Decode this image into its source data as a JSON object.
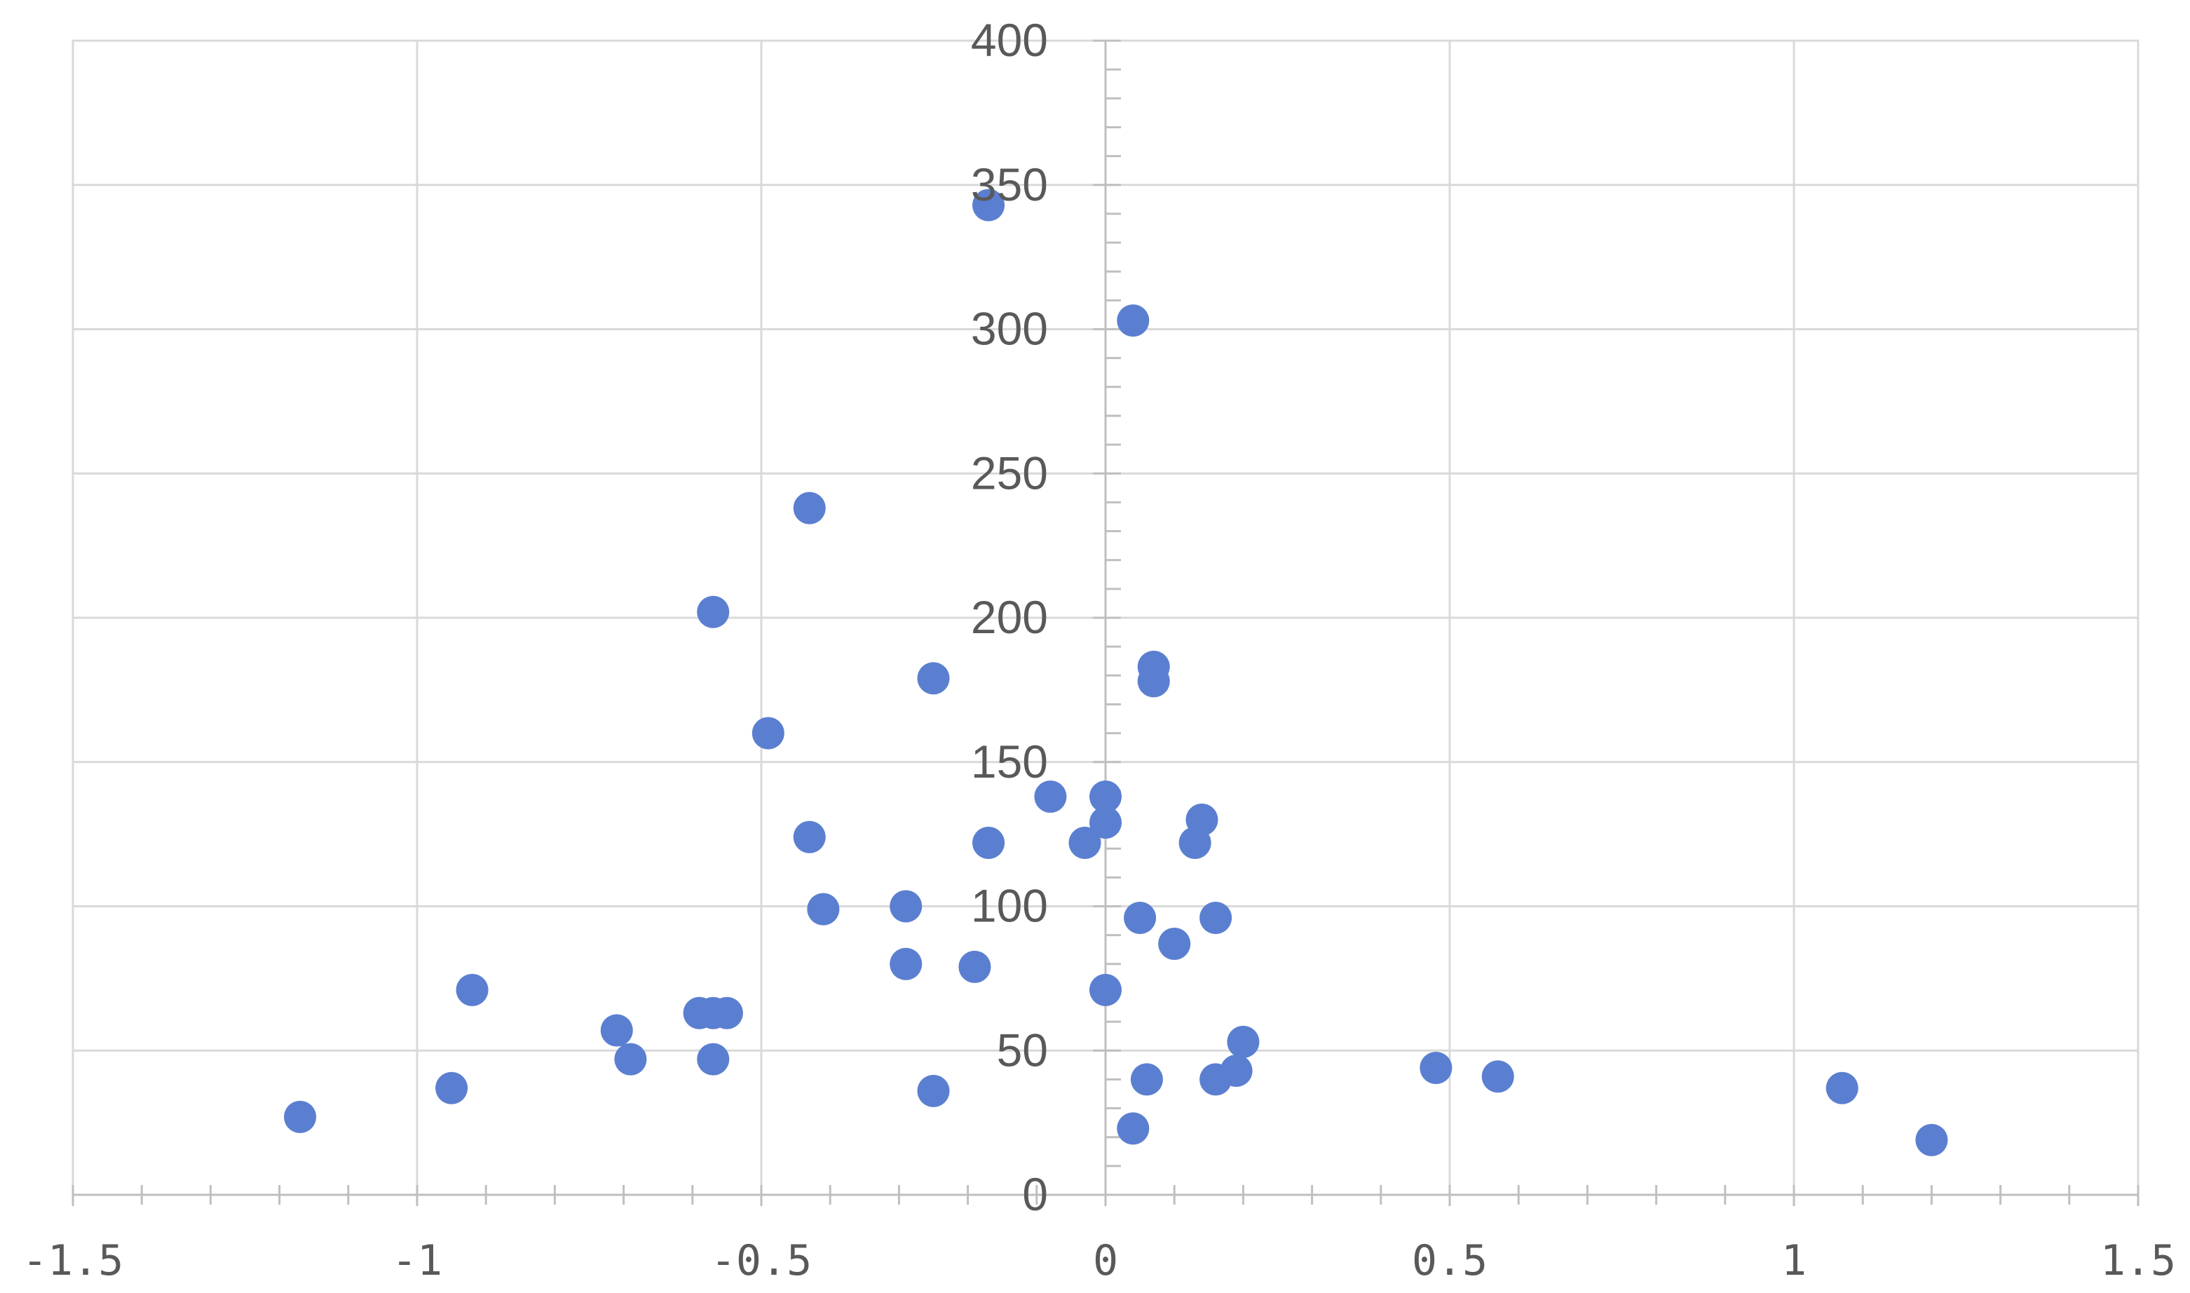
{
  "chart_data": {
    "type": "scatter",
    "title": "",
    "xlabel": "",
    "ylabel": "",
    "xlim": [
      -1.5,
      1.5
    ],
    "ylim": [
      0,
      400
    ],
    "x_major_step": 0.5,
    "x_minor_step": 0.1,
    "y_major_step": 50,
    "y_minor_step": 10,
    "x_tick_labels": [
      "-1.5",
      "-1",
      "-0.5",
      "0",
      "0.5",
      "1",
      "1.5"
    ],
    "y_tick_labels": [
      "0",
      "50",
      "100",
      "150",
      "200",
      "250",
      "300",
      "350",
      "400"
    ],
    "grid": true,
    "legend": "none",
    "marker_color": "#5B7FD0",
    "series": [
      {
        "points": [
          {
            "x": -1.17,
            "y": 27
          },
          {
            "x": -0.95,
            "y": 37
          },
          {
            "x": -0.92,
            "y": 71
          },
          {
            "x": -0.71,
            "y": 57
          },
          {
            "x": -0.69,
            "y": 47
          },
          {
            "x": -0.59,
            "y": 63
          },
          {
            "x": -0.57,
            "y": 63
          },
          {
            "x": -0.57,
            "y": 47
          },
          {
            "x": -0.55,
            "y": 63
          },
          {
            "x": -0.57,
            "y": 202
          },
          {
            "x": -0.49,
            "y": 160
          },
          {
            "x": -0.43,
            "y": 238
          },
          {
            "x": -0.43,
            "y": 124
          },
          {
            "x": -0.41,
            "y": 99
          },
          {
            "x": -0.29,
            "y": 100
          },
          {
            "x": -0.29,
            "y": 80
          },
          {
            "x": -0.25,
            "y": 179
          },
          {
            "x": -0.25,
            "y": 36
          },
          {
            "x": -0.19,
            "y": 79
          },
          {
            "x": -0.17,
            "y": 343
          },
          {
            "x": -0.17,
            "y": 122
          },
          {
            "x": -0.08,
            "y": 138
          },
          {
            "x": -0.03,
            "y": 122
          },
          {
            "x": 0.0,
            "y": 138
          },
          {
            "x": 0.0,
            "y": 129
          },
          {
            "x": 0.0,
            "y": 71
          },
          {
            "x": 0.04,
            "y": 303
          },
          {
            "x": 0.04,
            "y": 23
          },
          {
            "x": 0.05,
            "y": 96
          },
          {
            "x": 0.06,
            "y": 40
          },
          {
            "x": 0.07,
            "y": 183
          },
          {
            "x": 0.07,
            "y": 178
          },
          {
            "x": 0.1,
            "y": 87
          },
          {
            "x": 0.13,
            "y": 122
          },
          {
            "x": 0.14,
            "y": 130
          },
          {
            "x": 0.16,
            "y": 96
          },
          {
            "x": 0.16,
            "y": 40
          },
          {
            "x": 0.19,
            "y": 43
          },
          {
            "x": 0.2,
            "y": 53
          },
          {
            "x": 0.48,
            "y": 44
          },
          {
            "x": 0.57,
            "y": 41
          },
          {
            "x": 1.07,
            "y": 37
          },
          {
            "x": 1.2,
            "y": 19
          }
        ]
      }
    ]
  }
}
